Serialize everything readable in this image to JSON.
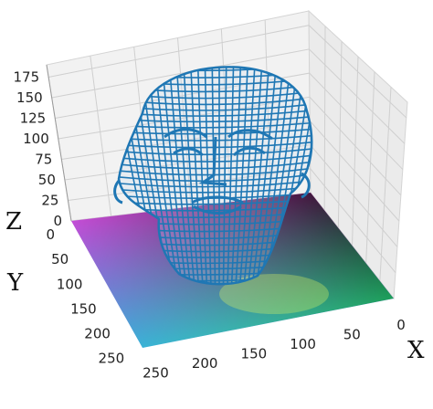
{
  "chart_data": {
    "type": "surface3d",
    "subject": "face-mesh-wireframe",
    "axes": {
      "x": {
        "label": "X",
        "range": [
          0,
          256
        ],
        "ticks": [
          "0",
          "50",
          "100",
          "150",
          "200",
          "250"
        ]
      },
      "y": {
        "label": "Y",
        "range": [
          0,
          256
        ],
        "ticks": [
          "0",
          "50",
          "100",
          "150",
          "200",
          "250"
        ]
      },
      "z": {
        "label": "Z",
        "range": [
          0,
          190
        ],
        "ticks": [
          "0",
          "25",
          "50",
          "75",
          "100",
          "125",
          "150",
          "175"
        ]
      }
    },
    "grid": true,
    "series": [
      {
        "kind": "wireframe-mesh",
        "color": "#1f77b4"
      },
      {
        "kind": "uv-colormap-plane",
        "corner_colors": [
          "#e23ad2",
          "#3fa6ef",
          "#25e37d",
          "#0b0b0b"
        ]
      }
    ]
  }
}
